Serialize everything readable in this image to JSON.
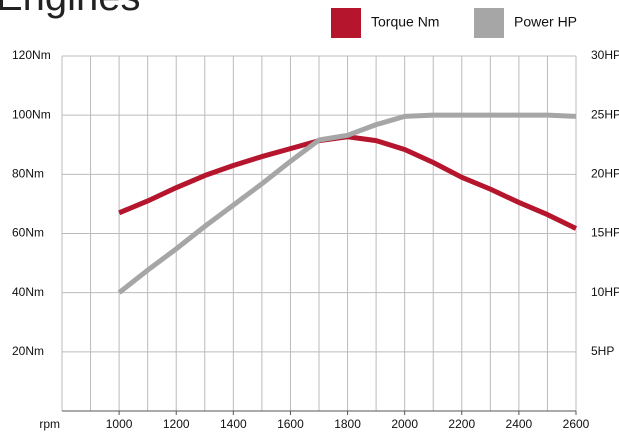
{
  "chart_data": {
    "type": "line",
    "title": "Engines",
    "x_label": "rpm",
    "x": [
      1000,
      1100,
      1200,
      1300,
      1400,
      1500,
      1600,
      1700,
      1800,
      1900,
      2000,
      2100,
      2200,
      2300,
      2400,
      2500,
      2600
    ],
    "series": [
      {
        "name": "Torque Nm",
        "color": "#b5152d",
        "values": [
          67,
          71,
          75.5,
          79.6,
          83,
          86,
          88.7,
          91.4,
          92.7,
          91.4,
          88.4,
          84,
          79,
          75,
          70.5,
          66.4,
          61.7
        ]
      },
      {
        "name": "Power HP",
        "color": "#a6a6a6",
        "axis": "y2",
        "values": [
          10,
          11.9,
          13.7,
          15.6,
          17.4,
          19.2,
          21.1,
          22.9,
          23.3,
          24.2,
          24.9,
          25,
          25,
          25,
          25,
          25,
          24.9
        ]
      }
    ],
    "xlim": [
      800,
      2600
    ],
    "xticks": [
      1000,
      1200,
      1400,
      1600,
      1800,
      2000,
      2200,
      2400,
      2600
    ],
    "x_gridlines": [
      800,
      900,
      1000,
      1100,
      1200,
      1300,
      1400,
      1500,
      1600,
      1700,
      1800,
      1900,
      2000,
      2100,
      2200,
      2300,
      2400,
      2500,
      2600
    ],
    "ylim": [
      0,
      120
    ],
    "yticks": [
      {
        "value": 20,
        "label": "20Nm"
      },
      {
        "value": 40,
        "label": "40Nm"
      },
      {
        "value": 60,
        "label": "60Nm"
      },
      {
        "value": 80,
        "label": "80Nm"
      },
      {
        "value": 100,
        "label": "100Nm"
      },
      {
        "value": 120,
        "label": "120Nm"
      }
    ],
    "y2lim": [
      0,
      30
    ],
    "y2ticks": [
      {
        "value": 5,
        "label": "5HP"
      },
      {
        "value": 10,
        "label": "10HP"
      },
      {
        "value": 15,
        "label": "15HP"
      },
      {
        "value": 20,
        "label": "20HP"
      },
      {
        "value": 25,
        "label": "25HP"
      },
      {
        "value": 30,
        "label": "30HP"
      }
    ],
    "grid": true
  }
}
